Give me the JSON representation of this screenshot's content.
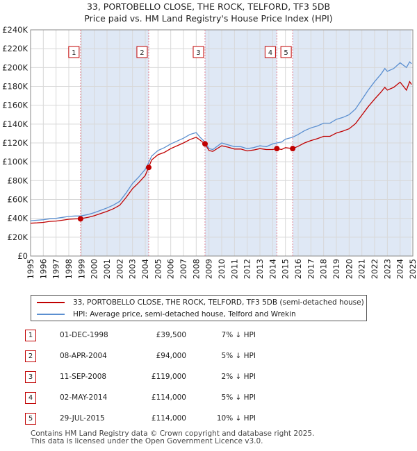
{
  "title_line1": "33, PORTOBELLO CLOSE, THE ROCK, TELFORD, TF3 5DB",
  "title_line2": "Price paid vs. HM Land Registry's House Price Index (HPI)",
  "legend": {
    "property": "33, PORTOBELLO CLOSE, THE ROCK, TELFORD, TF3 5DB (semi-detached house)",
    "hpi": "HPI: Average price, semi-detached house, Telford and Wrekin"
  },
  "colors": {
    "property": "#c00000",
    "hpi": "#5b8fd0",
    "shade": "#dfe8f5",
    "marker_line": "#e08090"
  },
  "sales": [
    {
      "num": "1",
      "date": "01-DEC-1998",
      "price": "£39,500",
      "diff": "7% ↓ HPI"
    },
    {
      "num": "2",
      "date": "08-APR-2004",
      "price": "£94,000",
      "diff": "5% ↓ HPI"
    },
    {
      "num": "3",
      "date": "11-SEP-2008",
      "price": "£119,000",
      "diff": "2% ↓ HPI"
    },
    {
      "num": "4",
      "date": "02-MAY-2014",
      "price": "£114,000",
      "diff": "5% ↓ HPI"
    },
    {
      "num": "5",
      "date": "29-JUL-2015",
      "price": "£114,000",
      "diff": "10% ↓ HPI"
    }
  ],
  "footer_line1": "Contains HM Land Registry data © Crown copyright and database right 2025.",
  "footer_line2": "This data is licensed under the Open Government Licence v3.0.",
  "chart_data": {
    "type": "line",
    "title": "33, PORTOBELLO CLOSE, THE ROCK, TELFORD, TF3 5DB",
    "subtitle": "Price paid vs. HM Land Registry's House Price Index (HPI)",
    "xlim": [
      1995,
      2025
    ],
    "ylim": [
      0,
      240000
    ],
    "x_ticks": [
      1995,
      1996,
      1997,
      1998,
      1999,
      2000,
      2001,
      2002,
      2003,
      2004,
      2005,
      2006,
      2007,
      2008,
      2009,
      2010,
      2011,
      2012,
      2013,
      2014,
      2015,
      2016,
      2017,
      2018,
      2019,
      2020,
      2021,
      2022,
      2023,
      2024,
      2025
    ],
    "y_ticks": [
      0,
      20000,
      40000,
      60000,
      80000,
      100000,
      120000,
      140000,
      160000,
      180000,
      200000,
      220000,
      240000
    ],
    "y_tick_labels": [
      "£0",
      "£20K",
      "£40K",
      "£60K",
      "£80K",
      "£100K",
      "£120K",
      "£140K",
      "£160K",
      "£180K",
      "£200K",
      "£220K",
      "£240K"
    ],
    "shaded_periods": [
      [
        1998.92,
        2004.27
      ],
      [
        2008.69,
        2014.33
      ],
      [
        2015.57,
        2024.9
      ]
    ],
    "sale_points": [
      {
        "label": "1",
        "x": 1998.92,
        "y": 39500
      },
      {
        "label": "2",
        "x": 2004.27,
        "y": 94000
      },
      {
        "label": "3",
        "x": 2008.69,
        "y": 119000
      },
      {
        "label": "4",
        "x": 2014.33,
        "y": 114000
      },
      {
        "label": "5",
        "x": 2015.57,
        "y": 114000
      }
    ],
    "series": [
      {
        "name": "HPI: Average price, semi-detached house, Telford and Wrekin",
        "x": [
          1995,
          1995.5,
          1996,
          1996.5,
          1997,
          1997.5,
          1998,
          1998.5,
          1998.92,
          1999.5,
          2000,
          2000.5,
          2001,
          2001.5,
          2002,
          2002.5,
          2003,
          2003.5,
          2004,
          2004.27,
          2004.5,
          2005,
          2005.5,
          2006,
          2006.5,
          2007,
          2007.5,
          2008,
          2008.3,
          2008.69,
          2009,
          2009.3,
          2009.7,
          2010,
          2010.5,
          2011,
          2011.5,
          2012,
          2012.5,
          2013,
          2013.5,
          2014,
          2014.33,
          2014.7,
          2015,
          2015.57,
          2016,
          2016.5,
          2017,
          2017.5,
          2018,
          2018.5,
          2019,
          2019.5,
          2020,
          2020.5,
          2021,
          2021.5,
          2022,
          2022.5,
          2022.8,
          2023,
          2023.5,
          2024,
          2024.5,
          2024.75,
          2024.9
        ],
        "values": [
          37500,
          38000,
          38500,
          39500,
          40000,
          41000,
          42000,
          42500,
          42500,
          44000,
          46000,
          48500,
          51000,
          54000,
          58000,
          67000,
          77000,
          84000,
          92000,
          99000,
          106000,
          112000,
          115000,
          119000,
          122000,
          125000,
          129000,
          131000,
          126000,
          121000,
          114000,
          113000,
          117000,
          120000,
          118000,
          116000,
          116000,
          114000,
          115000,
          117000,
          116000,
          119000,
          120000,
          121000,
          124000,
          126000,
          129000,
          133000,
          136000,
          138000,
          141000,
          141000,
          145000,
          147000,
          150000,
          156000,
          166000,
          176000,
          185000,
          193000,
          199000,
          196000,
          199000,
          205000,
          200000,
          206000,
          204000
        ]
      },
      {
        "name": "33, PORTOBELLO CLOSE, THE ROCK, TELFORD, TF3 5DB (semi-detached house)",
        "x": [
          1995,
          1995.5,
          1996,
          1996.5,
          1997,
          1997.5,
          1998,
          1998.5,
          1998.92,
          1999.5,
          2000,
          2000.5,
          2001,
          2001.5,
          2002,
          2002.5,
          2003,
          2003.5,
          2004,
          2004.27,
          2004.5,
          2005,
          2005.5,
          2006,
          2006.5,
          2007,
          2007.5,
          2008,
          2008.3,
          2008.69,
          2009,
          2009.3,
          2009.7,
          2010,
          2010.5,
          2011,
          2011.5,
          2012,
          2012.5,
          2013,
          2013.5,
          2014,
          2014.33,
          2014.7,
          2015,
          2015.57,
          2016,
          2016.5,
          2017,
          2017.5,
          2018,
          2018.5,
          2019,
          2019.5,
          2020,
          2020.5,
          2021,
          2021.5,
          2022,
          2022.5,
          2022.8,
          2023,
          2023.5,
          2024,
          2024.5,
          2024.75,
          2024.9
        ],
        "values": [
          34800,
          35200,
          35700,
          36700,
          37100,
          38000,
          39000,
          39400,
          39500,
          41000,
          42800,
          45100,
          47400,
          50200,
          53900,
          62200,
          71500,
          78000,
          85500,
          94000,
          102000,
          107500,
          110000,
          114000,
          117000,
          120000,
          123500,
          126000,
          123000,
          119000,
          112000,
          111000,
          114500,
          117000,
          115500,
          113500,
          113500,
          111500,
          112500,
          114000,
          113000,
          113000,
          114000,
          113000,
          115000,
          114000,
          116500,
          120000,
          122500,
          124500,
          127000,
          127000,
          130500,
          132500,
          135000,
          140500,
          149500,
          158500,
          166500,
          174000,
          179000,
          176000,
          179000,
          184500,
          176000,
          185000,
          182000
        ]
      }
    ]
  }
}
